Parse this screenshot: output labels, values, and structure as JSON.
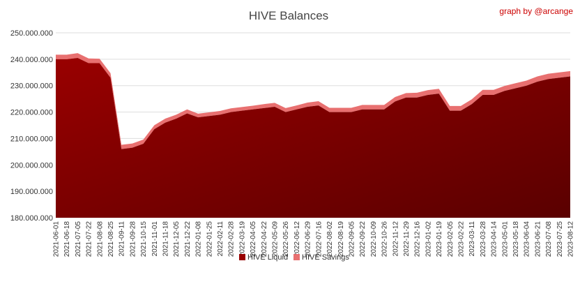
{
  "chart_data": {
    "type": "area",
    "title": "HIVE Balances",
    "credit": "graph by @arcange",
    "xlabel": "",
    "ylabel": "",
    "ylim": [
      180000000,
      250000000
    ],
    "yticks": [
      "180.000.000",
      "190.000.000",
      "200.000.000",
      "210.000.000",
      "220.000.000",
      "230.000.000",
      "240.000.000",
      "250.000.000"
    ],
    "grid": true,
    "legend_position": "bottom-center",
    "colors": {
      "HIVE Liquid": "#990000",
      "HIVE Savings": "#e87070"
    },
    "x": [
      "2021-06-01",
      "2021-06-18",
      "2021-07-05",
      "2021-07-22",
      "2021-08-08",
      "2021-08-25",
      "2021-09-11",
      "2021-09-28",
      "2021-10-15",
      "2021-11-01",
      "2021-11-18",
      "2021-12-05",
      "2021-12-22",
      "2022-01-08",
      "2022-01-25",
      "2022-02-11",
      "2022-02-28",
      "2022-03-19",
      "2022-04-05",
      "2022-04-22",
      "2022-05-09",
      "2022-05-26",
      "2022-06-12",
      "2022-06-29",
      "2022-07-16",
      "2022-08-02",
      "2022-08-19",
      "2022-09-05",
      "2022-09-22",
      "2022-10-09",
      "2022-10-26",
      "2022-11-12",
      "2022-11-29",
      "2022-12-16",
      "2023-01-02",
      "2023-01-19",
      "2023-02-05",
      "2023-02-22",
      "2023-03-11",
      "2023-03-28",
      "2023-04-14",
      "2023-05-01",
      "2023-05-18",
      "2023-06-04",
      "2023-06-21",
      "2023-07-08",
      "2023-07-25",
      "2023-08-12"
    ],
    "series": [
      {
        "name": "HIVE Liquid",
        "values": [
          240000000,
          240000000,
          240500000,
          238500000,
          238500000,
          233000000,
          206000000,
          206500000,
          208000000,
          213500000,
          216000000,
          217500000,
          219500000,
          218000000,
          218500000,
          219000000,
          220000000,
          220500000,
          221000000,
          221500000,
          222000000,
          220000000,
          221000000,
          222000000,
          222500000,
          220000000,
          220000000,
          220000000,
          221000000,
          221000000,
          221000000,
          224000000,
          225500000,
          225500000,
          226500000,
          227000000,
          220500000,
          220500000,
          223000000,
          226500000,
          226500000,
          228000000,
          229000000,
          230000000,
          231500000,
          232500000,
          233000000,
          233500000
        ]
      },
      {
        "name": "HIVE Savings",
        "values": [
          1700000,
          1700000,
          1800000,
          1800000,
          1700000,
          1700000,
          1600000,
          1600000,
          1600000,
          1500000,
          1500000,
          1500000,
          1500000,
          1400000,
          1400000,
          1400000,
          1400000,
          1400000,
          1400000,
          1500000,
          1500000,
          1500000,
          1500000,
          1600000,
          1600000,
          1600000,
          1600000,
          1600000,
          1700000,
          1700000,
          1700000,
          1700000,
          1700000,
          1800000,
          1800000,
          1800000,
          1800000,
          1800000,
          1800000,
          1900000,
          1900000,
          1900000,
          1900000,
          1900000,
          2000000,
          2000000,
          2000000,
          2000000
        ]
      }
    ]
  }
}
